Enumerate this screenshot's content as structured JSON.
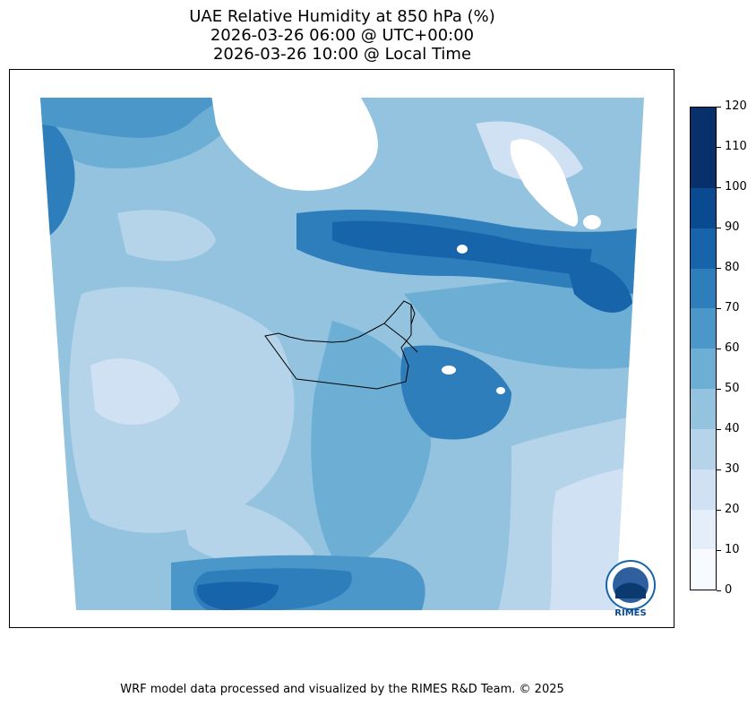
{
  "title": {
    "line1": "UAE Relative Humidity at 850 hPa (%)",
    "line2": "2026-03-26 06:00 @ UTC+00:00",
    "line3": "2026-03-26 10:00 @ Local Time"
  },
  "colorbar": {
    "levels": [
      0,
      10,
      20,
      30,
      40,
      50,
      60,
      70,
      80,
      90,
      100,
      110,
      120
    ],
    "tick_labels": [
      "0",
      "10",
      "20",
      "30",
      "40",
      "50",
      "60",
      "70",
      "80",
      "90",
      "100",
      "110",
      "120"
    ],
    "colors": [
      "#f7fbff",
      "#e3eef9",
      "#cfe1f2",
      "#b5d4e9",
      "#93c3df",
      "#6daed5",
      "#4b97c9",
      "#2f7ebc",
      "#1864aa",
      "#0a4a90",
      "#08306b",
      "#08306b"
    ]
  },
  "logo": {
    "text": "RIMES"
  },
  "footer": {
    "credit": "WRF model data processed and visualized by the RIMES R&D Team. © 2025"
  }
}
